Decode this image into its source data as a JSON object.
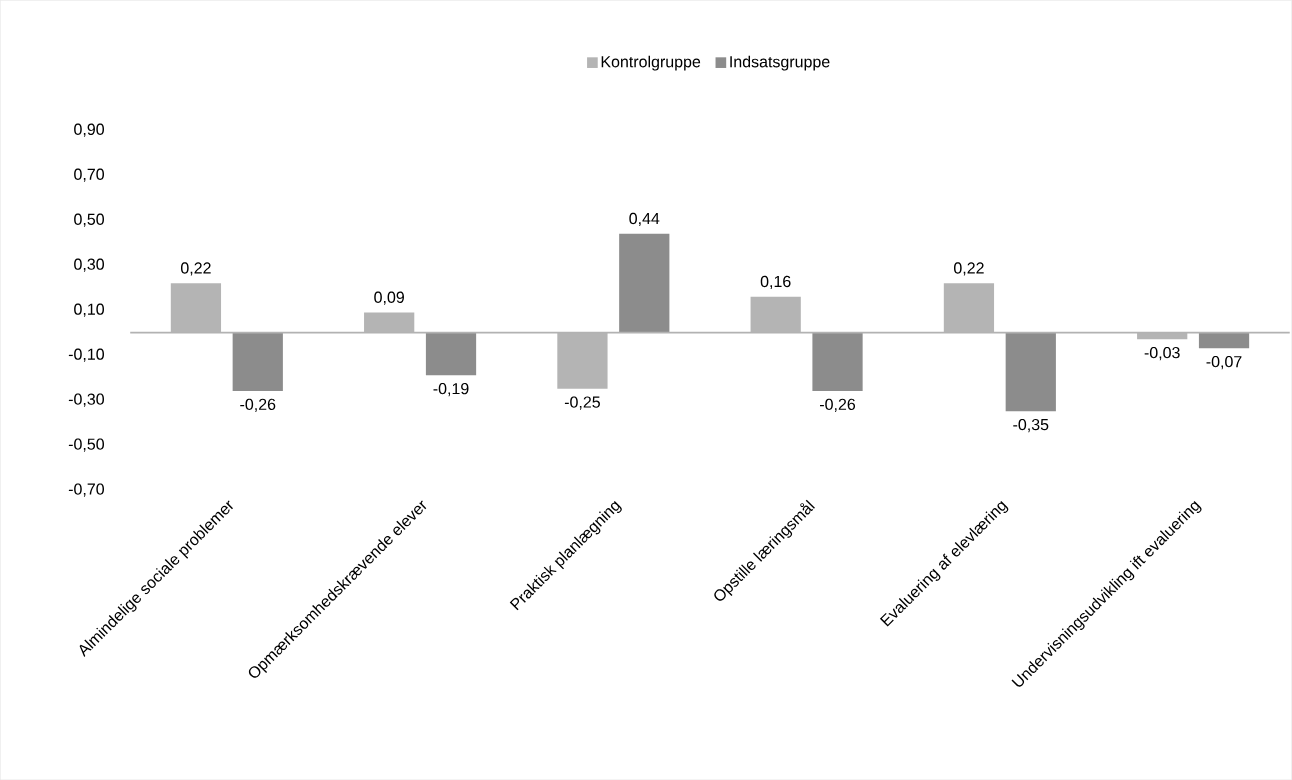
{
  "chart_data": {
    "type": "bar",
    "categories": [
      "Almindelige sociale problemer",
      "Opmærksomhedskrævende elever",
      "Praktisk planlægning",
      "Opstille læringsmål",
      "Evaluering af elevlæring",
      "Undervisningsudvikling ift evaluering"
    ],
    "series": [
      {
        "name": "Kontrolgruppe",
        "color": "#b4b4b4",
        "values": [
          0.22,
          0.09,
          -0.25,
          0.16,
          0.22,
          -0.03
        ],
        "value_labels": [
          "0,22",
          "0,09",
          "-0,25",
          "0,16",
          "0,22",
          "-0,03"
        ]
      },
      {
        "name": "Indsatsgruppe",
        "color": "#8c8c8c",
        "values": [
          -0.26,
          -0.19,
          0.44,
          -0.26,
          -0.35,
          -0.07
        ],
        "value_labels": [
          "-0,26",
          "-0,19",
          "0,44",
          "-0,26",
          "-0,35",
          "-0,07"
        ]
      }
    ],
    "ylim": [
      -0.7,
      0.9
    ],
    "yticks": [
      {
        "value": -0.7,
        "label": "-0,70"
      },
      {
        "value": -0.5,
        "label": "-0,50"
      },
      {
        "value": -0.3,
        "label": "-0,30"
      },
      {
        "value": -0.1,
        "label": "-0,10"
      },
      {
        "value": 0.1,
        "label": "0,10"
      },
      {
        "value": 0.3,
        "label": "0,30"
      },
      {
        "value": 0.5,
        "label": "0,50"
      },
      {
        "value": 0.7,
        "label": "0,70"
      },
      {
        "value": 0.9,
        "label": "0,90"
      }
    ],
    "legend": "top"
  }
}
